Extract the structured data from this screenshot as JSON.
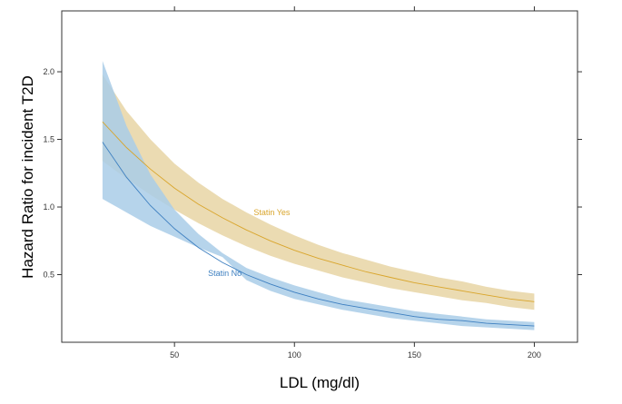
{
  "chart_data": {
    "type": "line",
    "xlabel": "LDL (mg/dl)",
    "ylabel": "Hazard Ratio for incident T2D",
    "xlim": [
      3,
      218
    ],
    "ylim": [
      0.0,
      2.45
    ],
    "x_ticks": [
      50,
      100,
      150,
      200
    ],
    "x_tick_labels": [
      "50",
      "100",
      "150",
      "200"
    ],
    "y_ticks": [
      0.5,
      1.0,
      1.5,
      2.0
    ],
    "y_tick_labels": [
      "0.5",
      "1.0",
      "1.5",
      "2.0"
    ],
    "grid": false,
    "legend": "inline labels",
    "series": [
      {
        "name": "Statin Yes",
        "color": "#d9a52b",
        "band_color": "#e7d5a5",
        "x": [
          20,
          30,
          40,
          50,
          60,
          70,
          80,
          90,
          100,
          110,
          120,
          130,
          140,
          150,
          160,
          170,
          180,
          190,
          200
        ],
        "y": [
          1.63,
          1.44,
          1.28,
          1.14,
          1.02,
          0.92,
          0.83,
          0.75,
          0.68,
          0.62,
          0.57,
          0.52,
          0.48,
          0.44,
          0.41,
          0.38,
          0.35,
          0.32,
          0.3
        ],
        "lower": [
          1.34,
          1.21,
          1.09,
          0.98,
          0.88,
          0.79,
          0.71,
          0.64,
          0.58,
          0.53,
          0.48,
          0.44,
          0.4,
          0.37,
          0.34,
          0.31,
          0.29,
          0.26,
          0.24
        ],
        "upper": [
          1.98,
          1.71,
          1.5,
          1.32,
          1.18,
          1.06,
          0.96,
          0.87,
          0.79,
          0.72,
          0.66,
          0.61,
          0.56,
          0.52,
          0.48,
          0.45,
          0.41,
          0.38,
          0.36
        ]
      },
      {
        "name": "Statin No",
        "color": "#3d7fc0",
        "band_color": "#a9cde8",
        "x": [
          20,
          30,
          40,
          50,
          60,
          70,
          80,
          90,
          100,
          110,
          120,
          130,
          140,
          150,
          160,
          170,
          180,
          190,
          200
        ],
        "y": [
          1.48,
          1.22,
          1.01,
          0.84,
          0.7,
          0.59,
          0.5,
          0.43,
          0.37,
          0.32,
          0.28,
          0.25,
          0.22,
          0.19,
          0.17,
          0.16,
          0.14,
          0.13,
          0.12
        ],
        "lower": [
          1.06,
          0.96,
          0.86,
          0.78,
          0.7,
          0.63,
          0.46,
          0.38,
          0.32,
          0.28,
          0.24,
          0.21,
          0.18,
          0.16,
          0.14,
          0.12,
          0.11,
          0.1,
          0.09
        ],
        "upper": [
          2.08,
          1.6,
          1.24,
          0.98,
          0.8,
          0.66,
          0.55,
          0.48,
          0.42,
          0.37,
          0.32,
          0.29,
          0.26,
          0.23,
          0.21,
          0.19,
          0.17,
          0.16,
          0.15
        ]
      }
    ],
    "annotations": [
      {
        "text": "Statin Yes",
        "x": 83,
        "y": 0.94,
        "series": "Statin Yes"
      },
      {
        "text": "Statin No",
        "x": 64,
        "y": 0.49,
        "series": "Statin No"
      }
    ]
  }
}
